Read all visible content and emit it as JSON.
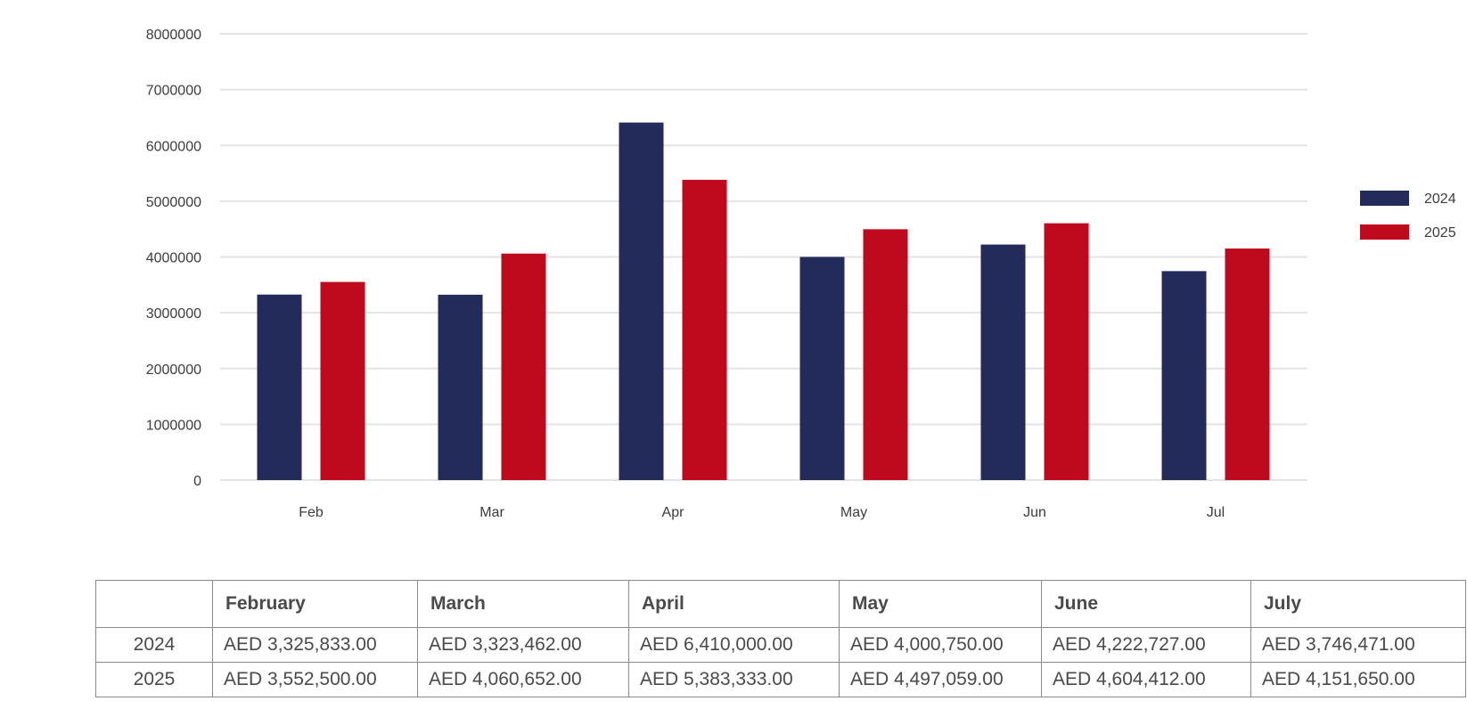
{
  "chart_data": {
    "type": "bar",
    "categories": [
      "Feb",
      "Mar",
      "Apr",
      "May",
      "Jun",
      "Jul"
    ],
    "series": [
      {
        "name": "2024",
        "color": "#232b5a",
        "values": [
          3325833,
          3323462,
          6410000,
          4000750,
          4222727,
          3746471
        ]
      },
      {
        "name": "2025",
        "color": "#bf0a1e",
        "values": [
          3552500,
          4060652,
          5383333,
          4497059,
          4604412,
          4151650
        ]
      }
    ],
    "ylim": [
      0,
      8000000
    ],
    "yticks": [
      "0",
      "1000000",
      "2000000",
      "3000000",
      "4000000",
      "5000000",
      "6000000",
      "7000000",
      "8000000"
    ],
    "grid": true,
    "legend_position": "right",
    "title": "",
    "xlabel": "",
    "ylabel": ""
  },
  "table": {
    "headers": [
      "",
      "February",
      "March",
      "April",
      "May",
      "June",
      "July"
    ],
    "rows": [
      {
        "label": "2024",
        "cells": [
          "AED 3,325,833.00",
          "AED 3,323,462.00",
          "AED 6,410,000.00",
          "AED 4,000,750.00",
          "AED 4,222,727.00",
          "AED 3,746,471.00"
        ]
      },
      {
        "label": "2025",
        "cells": [
          "AED 3,552,500.00",
          "AED 4,060,652.00",
          "AED 5,383,333.00",
          "AED 4,497,059.00",
          "AED 4,604,412.00",
          "AED 4,151,650.00"
        ]
      }
    ]
  }
}
